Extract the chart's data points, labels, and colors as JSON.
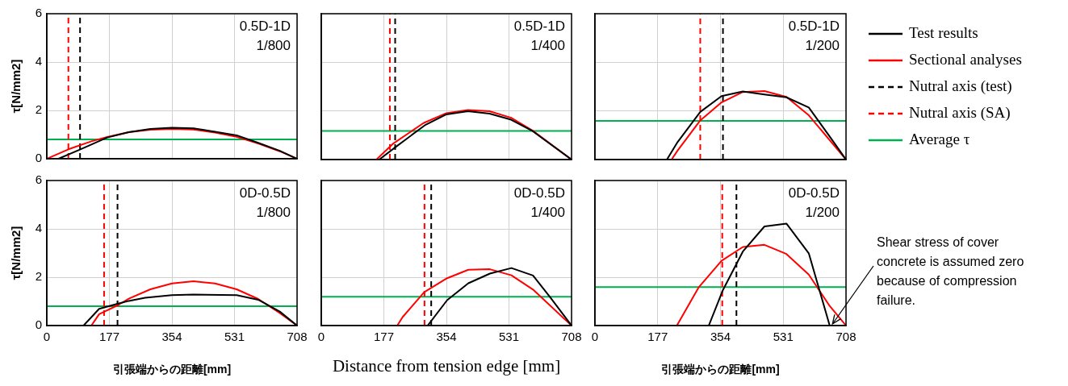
{
  "chart_data": [
    {
      "type": "line",
      "ylabel": "τ[N/mm2]",
      "annotations": [
        "0.5D-1D",
        "1/800"
      ],
      "xlim": [
        0,
        708
      ],
      "xticks": [
        0,
        177,
        354,
        531,
        708
      ],
      "ylim": [
        0,
        6
      ],
      "yticks": [
        0,
        2,
        4,
        6
      ],
      "grid": true,
      "tick_labels": "y",
      "marker": "none",
      "series": [
        {
          "color": "#000000",
          "x": [
            33,
            95,
            171,
            232,
            293,
            354,
            415,
            476,
            537,
            598,
            659,
            708
          ],
          "values": [
            0,
            0.39,
            0.88,
            1.1,
            1.23,
            1.28,
            1.26,
            1.12,
            0.97,
            0.66,
            0.33,
            0
          ]
        },
        {
          "color": "#ff0000",
          "x": [
            0,
            61,
            126,
            171,
            232,
            293,
            354,
            415,
            476,
            537,
            598,
            659,
            708
          ],
          "values": [
            0,
            0.39,
            0.72,
            0.9,
            1.1,
            1.2,
            1.23,
            1.21,
            1.08,
            0.91,
            0.63,
            0.31,
            0
          ]
        },
        {
          "color": "#000000",
          "line_style": "dashed",
          "x": [
            94,
            94
          ],
          "values": [
            0,
            6
          ]
        },
        {
          "color": "#ff0000",
          "line_style": "dashed",
          "x": [
            61,
            61
          ],
          "values": [
            0,
            6
          ]
        },
        {
          "color": "#00b050",
          "x": [
            0,
            708
          ],
          "values": [
            0.8,
            0.8
          ]
        }
      ]
    },
    {
      "type": "line",
      "annotations": [
        "0.5D-1D",
        "1/400"
      ],
      "xlim": [
        0,
        708
      ],
      "xticks": [
        0,
        177,
        354,
        531,
        708
      ],
      "ylim": [
        0,
        6
      ],
      "yticks": [
        0,
        2,
        4,
        6
      ],
      "grid": true,
      "tick_labels": false,
      "marker": "none",
      "series": [
        {
          "color": "#000000",
          "x": [
            164,
            209,
            293,
            354,
            415,
            476,
            537,
            598,
            708
          ],
          "values": [
            0,
            0.5,
            1.41,
            1.86,
            1.99,
            1.89,
            1.64,
            1.17,
            0
          ]
        },
        {
          "color": "#ff0000",
          "x": [
            156,
            202,
            289,
            354,
            415,
            476,
            537,
            598,
            708
          ],
          "values": [
            0,
            0.64,
            1.5,
            1.91,
            2.04,
            1.99,
            1.72,
            1.19,
            0
          ]
        },
        {
          "color": "#000000",
          "line_style": "dashed",
          "x": [
            209,
            209
          ],
          "values": [
            0,
            6
          ]
        },
        {
          "color": "#ff0000",
          "line_style": "dashed",
          "x": [
            194,
            194
          ],
          "values": [
            0,
            6
          ]
        },
        {
          "color": "#00b050",
          "x": [
            0,
            708
          ],
          "values": [
            1.18,
            1.18
          ]
        }
      ]
    },
    {
      "type": "line",
      "annotations": [
        "0.5D-1D",
        "1/200"
      ],
      "xlim": [
        0,
        708
      ],
      "xticks": [
        0,
        177,
        354,
        531,
        708
      ],
      "ylim": [
        0,
        6
      ],
      "yticks": [
        0,
        2,
        4,
        6
      ],
      "grid": true,
      "tick_labels": false,
      "marker": "none",
      "legend": "right",
      "series": [
        {
          "name": "Test results",
          "color": "#000000",
          "x": [
            203,
            233,
            297,
            357,
            417,
            478,
            540,
            603,
            662,
            708
          ],
          "values": [
            0,
            0.72,
            1.96,
            2.61,
            2.8,
            2.68,
            2.56,
            2.14,
            0.95,
            0
          ]
        },
        {
          "name": "Sectional analyses",
          "color": "#ff0000",
          "x": [
            216,
            233,
            297,
            357,
            417,
            478,
            540,
            603,
            708
          ],
          "values": [
            0,
            0.37,
            1.61,
            2.35,
            2.78,
            2.82,
            2.58,
            1.82,
            0
          ]
        },
        {
          "name": "Nutral axis (test)",
          "color": "#000000",
          "line_style": "dashed",
          "x": [
            361,
            361
          ],
          "values": [
            0,
            6
          ]
        },
        {
          "name": "Nutral axis (SA)",
          "color": "#ff0000",
          "line_style": "dashed",
          "x": [
            297,
            297
          ],
          "values": [
            0,
            6
          ]
        },
        {
          "name": "Average τ",
          "color": "#00b050",
          "x": [
            0,
            708
          ],
          "values": [
            1.59,
            1.59
          ]
        }
      ]
    },
    {
      "type": "line",
      "ylabel": "τ[N/mm2]",
      "xlabel": "引張端からの距離[mm]",
      "annotations": [
        "0D-0.5D",
        "1/800"
      ],
      "xlim": [
        0,
        708
      ],
      "xticks": [
        0,
        177,
        354,
        531,
        708
      ],
      "ylim": [
        0,
        6
      ],
      "yticks": [
        0,
        2,
        4,
        6
      ],
      "grid": true,
      "marker": "none",
      "series": [
        {
          "color": "#000000",
          "x": [
            104,
            148,
            202,
            232,
            278,
            354,
            415,
            537,
            598,
            659,
            708
          ],
          "values": [
            0,
            0.69,
            0.91,
            1.02,
            1.15,
            1.26,
            1.28,
            1.26,
            1.07,
            0.58,
            0
          ]
        },
        {
          "color": "#ff0000",
          "x": [
            126,
            148,
            202,
            232,
            293,
            354,
            415,
            476,
            537,
            598,
            659,
            708
          ],
          "values": [
            0,
            0.47,
            0.85,
            1.11,
            1.5,
            1.74,
            1.83,
            1.74,
            1.5,
            1.1,
            0.52,
            0
          ]
        },
        {
          "color": "#000000",
          "line_style": "dashed",
          "x": [
            200,
            200
          ],
          "values": [
            0,
            6
          ]
        },
        {
          "color": "#ff0000",
          "line_style": "dashed",
          "x": [
            162,
            162
          ],
          "values": [
            0,
            6
          ]
        },
        {
          "color": "#00b050",
          "x": [
            0,
            708
          ],
          "values": [
            0.8,
            0.8
          ]
        }
      ]
    },
    {
      "type": "line",
      "xlabel": "Distance from tension edge [mm]",
      "annotations": [
        "0D-0.5D",
        "1/400"
      ],
      "xlim": [
        0,
        708
      ],
      "xticks": [
        0,
        177,
        354,
        531,
        708
      ],
      "ylim": [
        0,
        6
      ],
      "yticks": [
        0,
        2,
        4,
        6
      ],
      "grid": true,
      "tick_labels": "x",
      "marker": "none",
      "series": [
        {
          "color": "#000000",
          "x": [
            301,
            356,
            416,
            477,
            538,
            599,
            648,
            708
          ],
          "values": [
            0,
            1.05,
            1.75,
            2.15,
            2.38,
            2.07,
            1.16,
            0
          ]
        },
        {
          "color": "#ff0000",
          "x": [
            215,
            230,
            291,
            356,
            416,
            477,
            538,
            599,
            708
          ],
          "values": [
            0,
            0.35,
            1.38,
            1.96,
            2.31,
            2.33,
            2.08,
            1.49,
            0
          ]
        },
        {
          "color": "#000000",
          "line_style": "dashed",
          "x": [
            311,
            311
          ],
          "values": [
            0,
            6
          ]
        },
        {
          "color": "#ff0000",
          "line_style": "dashed",
          "x": [
            292,
            292
          ],
          "values": [
            0,
            6
          ]
        },
        {
          "color": "#00b050",
          "x": [
            0,
            708
          ],
          "values": [
            1.19,
            1.19
          ]
        }
      ]
    },
    {
      "type": "line",
      "xlabel": "引張端からの距離[mm]",
      "annotations": [
        "0D-0.5D",
        "1/200",
        {
          "text": "Shear stress of cover concrete is assumed zero because of compression failure.",
          "x": 670,
          "y": 0
        }
      ],
      "xlim": [
        0,
        708
      ],
      "xticks": [
        0,
        177,
        354,
        531,
        708
      ],
      "ylim": [
        0,
        6
      ],
      "yticks": [
        0,
        2,
        4,
        6
      ],
      "grid": true,
      "tick_labels": "x",
      "marker": "none",
      "series": [
        {
          "color": "#000000",
          "x": [
            321,
            360,
            417,
            478,
            540,
            603,
            662,
            708
          ],
          "values": [
            0,
            1.44,
            3.06,
            4.1,
            4.22,
            2.99,
            0,
            0
          ]
        },
        {
          "color": "#ff0000",
          "x": [
            231,
            293,
            357,
            417,
            478,
            540,
            603,
            662,
            708
          ],
          "values": [
            0,
            1.59,
            2.68,
            3.25,
            3.34,
            2.96,
            2.11,
            0.81,
            0
          ]
        },
        {
          "color": "#000000",
          "line_style": "dashed",
          "x": [
            399,
            399
          ],
          "values": [
            0,
            6
          ]
        },
        {
          "color": "#ff0000",
          "line_style": "dashed",
          "x": [
            359,
            359
          ],
          "values": [
            0,
            6
          ]
        },
        {
          "color": "#00b050",
          "x": [
            0,
            708
          ],
          "values": [
            1.59,
            1.59
          ]
        }
      ]
    }
  ]
}
